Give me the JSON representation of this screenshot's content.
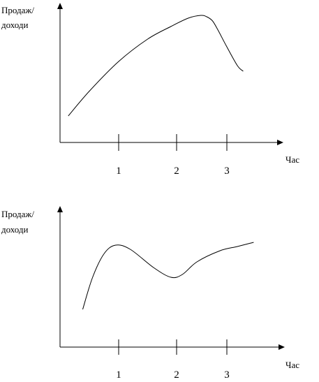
{
  "chart_data": [
    {
      "type": "line",
      "title": "",
      "ylabel": [
        "Продаж/",
        "доходи"
      ],
      "xlabel": "Час",
      "x_ticks": [
        "1",
        "2",
        "3"
      ],
      "xlim": [
        0,
        3.9
      ],
      "ylim": [
        0,
        10
      ],
      "grid": false,
      "legend": "none",
      "line_color": "#000000",
      "series": [
        {
          "x": [
            0.13,
            0.5,
            1.0,
            1.5,
            1.9,
            2.2,
            2.42,
            2.52,
            2.62,
            2.72,
            2.86,
            3.05,
            3.15
          ],
          "y": [
            1.9,
            3.7,
            5.8,
            7.4,
            8.3,
            8.9,
            9.1,
            9.0,
            8.7,
            8.0,
            6.9,
            5.5,
            5.1
          ]
        }
      ]
    },
    {
      "type": "line",
      "title": "",
      "ylabel": [
        "Продаж/",
        "доходи"
      ],
      "xlabel": "Час",
      "x_ticks": [
        "1",
        "2",
        "3"
      ],
      "xlim": [
        0,
        3.9
      ],
      "ylim": [
        0,
        10
      ],
      "grid": false,
      "legend": "none",
      "line_color": "#000000",
      "series": [
        {
          "x": [
            0.38,
            0.55,
            0.75,
            0.95,
            1.2,
            1.6,
            1.9,
            2.1,
            2.35,
            2.75,
            3.05,
            3.33
          ],
          "y": [
            2.7,
            5.0,
            6.7,
            7.3,
            7.0,
            5.7,
            5.0,
            5.2,
            6.1,
            6.9,
            7.2,
            7.5
          ]
        }
      ]
    }
  ]
}
